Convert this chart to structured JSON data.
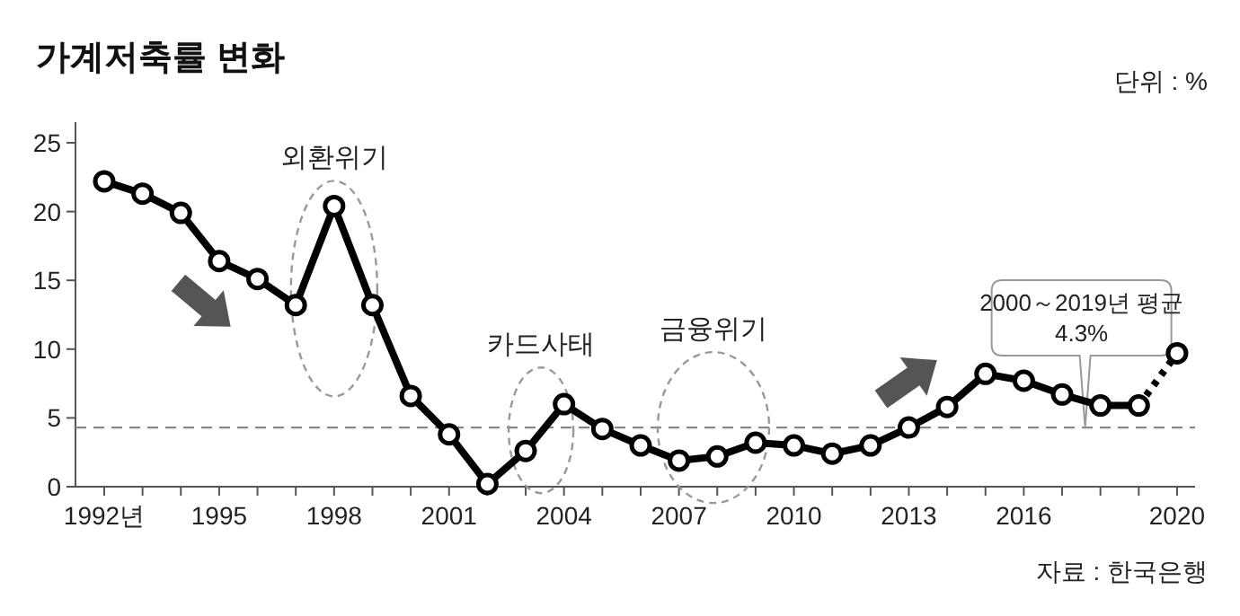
{
  "chart_data": {
    "type": "line",
    "title": "가계저축률 변화",
    "annotations": [
      "단위 : %",
      "자료 : 한국은행",
      "외환위기",
      "카드사태",
      "금융위기",
      "2000～2019년 평균 4.3%"
    ],
    "series": [
      {
        "color": "#000000",
        "x": [
          1992,
          1993,
          1994,
          1995,
          1996,
          1997,
          1998,
          1999,
          2000,
          2001,
          2002,
          2003,
          2004,
          2005,
          2006,
          2007,
          2008,
          2009,
          2010,
          2011,
          2012,
          2013,
          2014,
          2015,
          2016,
          2017,
          2018,
          2019
        ],
        "values": [
          22.2,
          21.3,
          19.9,
          16.4,
          15.1,
          13.2,
          20.4,
          13.2,
          6.6,
          3.8,
          0.2,
          2.6,
          6.0,
          4.2,
          3.0,
          1.9,
          2.2,
          3.2,
          3.0,
          2.4,
          3.0,
          4.3,
          5.8,
          8.2,
          7.7,
          6.7,
          5.9,
          5.9
        ],
        "line_style": "solid"
      },
      {
        "color": "#000000",
        "x": [
          2019,
          2020
        ],
        "values": [
          5.9,
          9.7
        ],
        "line_style": "dotted"
      }
    ],
    "xlim": [
      1991.25,
      2020.47
    ],
    "ylim": [
      0,
      26.5
    ],
    "xticks": [
      {
        "value": 1992,
        "label": "1992년"
      },
      {
        "value": 1993,
        "label": null
      },
      {
        "value": 1994,
        "label": null
      },
      1995,
      {
        "value": 1996,
        "label": null
      },
      {
        "value": 1997,
        "label": null
      },
      1998,
      {
        "value": 1999,
        "label": null
      },
      {
        "value": 2000,
        "label": null
      },
      2001,
      {
        "value": 2002,
        "label": null
      },
      {
        "value": 2003,
        "label": null
      },
      2004,
      {
        "value": 2005,
        "label": null
      },
      {
        "value": 2006,
        "label": null
      },
      2007,
      {
        "value": 2008,
        "label": null
      },
      {
        "value": 2009,
        "label": null
      },
      2010,
      {
        "value": 2011,
        "label": null
      },
      {
        "value": 2012,
        "label": null
      },
      2013,
      {
        "value": 2014,
        "label": null
      },
      {
        "value": 2015,
        "label": null
      },
      2016,
      {
        "value": 2017,
        "label": null
      },
      {
        "value": 2018,
        "label": null
      },
      {
        "value": 2019,
        "label": null
      },
      2020
    ],
    "yticks": [
      0,
      5,
      10,
      15,
      20,
      25
    ],
    "ref_lines": [
      {
        "axis": "y",
        "value": 4.3,
        "color": "#888888",
        "line_style": "dashed"
      }
    ],
    "marker": "circle",
    "grid": false
  }
}
